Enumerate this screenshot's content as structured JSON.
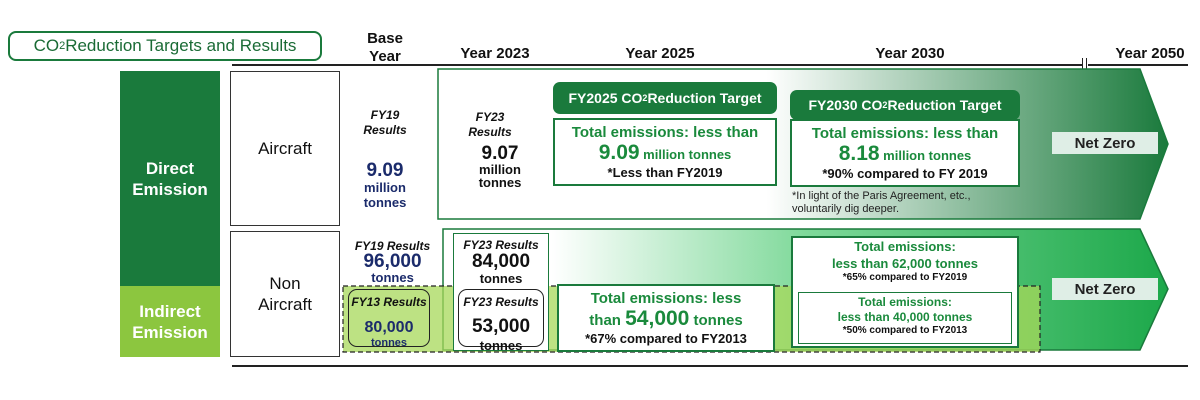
{
  "title": {
    "pre": "CO",
    "sub": "2",
    "post": " Reduction Targets and Results"
  },
  "headers": {
    "base_year_line1": "Base",
    "base_year_line2": "Year",
    "y2023": "Year 2023",
    "y2025": "Year 2025",
    "y2030": "Year 2030",
    "y2050": "Year 2050"
  },
  "categories": {
    "direct_line1": "Direct",
    "direct_line2": "Emission",
    "indirect_line1": "Indirect",
    "indirect_line2": "Emission"
  },
  "rows": {
    "aircraft": "Aircraft",
    "non_aircraft_line1": "Non",
    "non_aircraft_line2": "Aircraft"
  },
  "aircraft": {
    "fy19_label_line1": "FY19",
    "fy19_label_line2": "Results",
    "fy19_value": "9.09",
    "fy19_unit_line1": "million",
    "fy19_unit_line2": "tonnes",
    "fy23_label_line1": "FY23",
    "fy23_label_line2": "Results",
    "fy23_value": "9.07",
    "fy23_unit_line1": "million",
    "fy23_unit_line2": "tonnes",
    "t2025_tab_pre": "FY2025 CO",
    "t2025_tab_sub": "2",
    "t2025_tab_post": " Reduction Target",
    "t2025_line1": "Total emissions: less than",
    "t2025_value": "9.09",
    "t2025_unit": " million tonnes",
    "t2025_note": "*Less than FY2019",
    "t2030_tab_pre": "FY2030 CO",
    "t2030_tab_sub": "2",
    "t2030_tab_post": " Reduction Target",
    "t2030_line1": "Total emissions: less than",
    "t2030_value": "8.18",
    "t2030_unit": " million tonnes",
    "t2030_note": "*90% compared to FY 2019",
    "paris_note_line1": "*In light of the Paris Agreement, etc.,",
    "paris_note_line2": "voluntarily dig deeper.",
    "net_zero": "Net Zero"
  },
  "non_aircraft": {
    "fy19_label": "FY19 Results",
    "fy19_value": "96,000",
    "fy19_unit": "tonnes",
    "fy13_label": "FY13 Results",
    "fy13_value": "80,000",
    "fy13_unit": "tonnes",
    "fy23a_label": "FY23 Results",
    "fy23a_value": "84,000",
    "fy23a_unit": "tonnes",
    "fy23b_label": "FY23 Results",
    "fy23b_value": "53,000",
    "fy23b_unit": "tonnes",
    "t2025_line1": "Total emissions: less",
    "t2025_pre": "than ",
    "t2025_value": "54,000",
    "t2025_unit": " tonnes",
    "t2025_note": "*67% compared to FY2013",
    "t2030a_line1": "Total emissions:",
    "t2030a_line2": "less than 62,000 tonnes",
    "t2030a_note": "*65% compared to FY2019",
    "t2030b_line1": "Total emissions:",
    "t2030b_line2": "less than 40,000 tonnes",
    "t2030b_note": "*50% compared to FY2013",
    "net_zero": "Net Zero"
  },
  "colors": {
    "dark_green": "#1a7a3c",
    "light_green": "#8cc63f",
    "navy": "#1b2b6b"
  }
}
